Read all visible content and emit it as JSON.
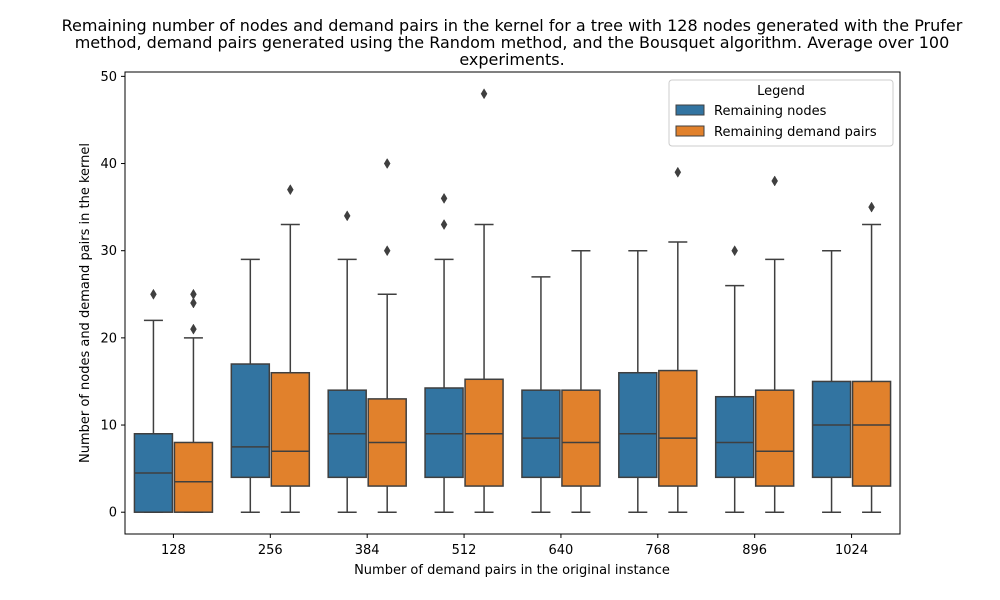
{
  "chart_data": {
    "type": "boxplot",
    "title_lines": [
      "Remaining number of nodes and demand pairs in the kernel for a tree with 128 nodes generated with the Prufer",
      "method, demand pairs generated using the Random method, and the Bousquet algorithm. Average over 100",
      "experiments."
    ],
    "xlabel": "Number of demand pairs in the original instance",
    "ylabel": "Number of nodes and demand pairs in the kernel",
    "categories": [
      "128",
      "256",
      "384",
      "512",
      "640",
      "768",
      "896",
      "1024"
    ],
    "ylim": [
      -2.5,
      50.5
    ],
    "yticks": [
      0,
      10,
      20,
      30,
      40,
      50
    ],
    "legend": {
      "title": "Legend",
      "position": "top-right"
    },
    "series": [
      {
        "name": "Remaining nodes",
        "color": "#3274a1",
        "boxes": [
          {
            "whisker_low": 0,
            "q1": 0,
            "median": 4.5,
            "q3": 9,
            "whisker_high": 22,
            "outliers": [
              25
            ]
          },
          {
            "whisker_low": 0,
            "q1": 4,
            "median": 7.5,
            "q3": 17,
            "whisker_high": 29,
            "outliers": []
          },
          {
            "whisker_low": 0,
            "q1": 4,
            "median": 9,
            "q3": 14,
            "whisker_high": 29,
            "outliers": [
              34
            ]
          },
          {
            "whisker_low": 0,
            "q1": 4,
            "median": 9,
            "q3": 14.25,
            "whisker_high": 29,
            "outliers": [
              33,
              36
            ]
          },
          {
            "whisker_low": 0,
            "q1": 4,
            "median": 8.5,
            "q3": 14,
            "whisker_high": 27,
            "outliers": []
          },
          {
            "whisker_low": 0,
            "q1": 4,
            "median": 9,
            "q3": 16,
            "whisker_high": 30,
            "outliers": []
          },
          {
            "whisker_low": 0,
            "q1": 4,
            "median": 8,
            "q3": 13.25,
            "whisker_high": 26,
            "outliers": [
              30
            ]
          },
          {
            "whisker_low": 0,
            "q1": 4,
            "median": 10,
            "q3": 15,
            "whisker_high": 30,
            "outliers": []
          }
        ]
      },
      {
        "name": "Remaining demand pairs",
        "color": "#e1812c",
        "boxes": [
          {
            "whisker_low": 0,
            "q1": 0,
            "median": 3.5,
            "q3": 8,
            "whisker_high": 20,
            "outliers": [
              21,
              24,
              25
            ]
          },
          {
            "whisker_low": 0,
            "q1": 3,
            "median": 7,
            "q3": 16,
            "whisker_high": 33,
            "outliers": [
              37
            ]
          },
          {
            "whisker_low": 0,
            "q1": 3,
            "median": 8,
            "q3": 13,
            "whisker_high": 25,
            "outliers": [
              30,
              40
            ]
          },
          {
            "whisker_low": 0,
            "q1": 3,
            "median": 9,
            "q3": 15.25,
            "whisker_high": 33,
            "outliers": [
              48
            ]
          },
          {
            "whisker_low": 0,
            "q1": 3,
            "median": 8,
            "q3": 14,
            "whisker_high": 30,
            "outliers": []
          },
          {
            "whisker_low": 0,
            "q1": 3,
            "median": 8.5,
            "q3": 16.25,
            "whisker_high": 31,
            "outliers": [
              39
            ]
          },
          {
            "whisker_low": 0,
            "q1": 3,
            "median": 7,
            "q3": 14,
            "whisker_high": 29,
            "outliers": [
              38
            ]
          },
          {
            "whisker_low": 0,
            "q1": 3,
            "median": 10,
            "q3": 15,
            "whisker_high": 33,
            "outliers": [
              35
            ]
          }
        ]
      }
    ],
    "line_color": "#3f3f3f",
    "grid": false
  }
}
